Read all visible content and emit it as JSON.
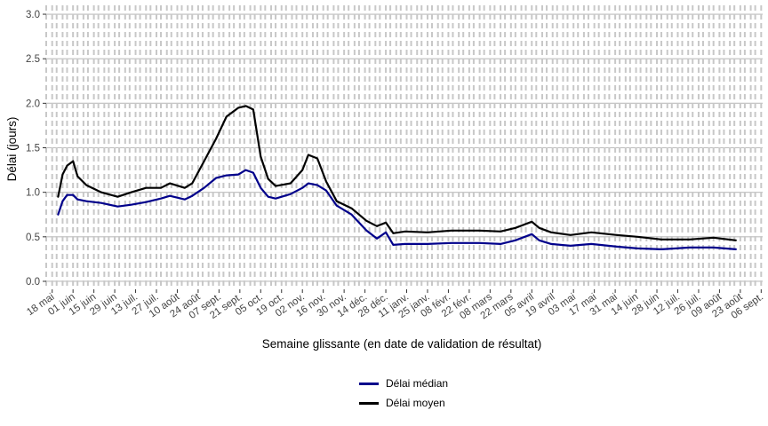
{
  "chart_data": {
    "type": "line",
    "xlabel": "Semaine glissante (en date de validation de résultat)",
    "ylabel": "Délai (jours)",
    "ylim": [
      -0.05,
      3.1
    ],
    "yticks": [
      0.0,
      0.5,
      1.0,
      1.5,
      2.0,
      2.5,
      3.0
    ],
    "ytick_labels": [
      "0.0",
      "0.5",
      "1.0",
      "1.5",
      "2.0",
      "2.5",
      "3.0"
    ],
    "xlim": [
      "2020-05-14",
      "2021-09-07"
    ],
    "x_tick_dates": [
      "2020-05-18",
      "2020-06-01",
      "2020-06-15",
      "2020-06-29",
      "2020-07-13",
      "2020-07-27",
      "2020-08-10",
      "2020-08-24",
      "2020-09-07",
      "2020-09-21",
      "2020-10-05",
      "2020-10-19",
      "2020-11-02",
      "2020-11-16",
      "2020-11-30",
      "2020-12-14",
      "2020-12-28",
      "2021-01-11",
      "2021-01-25",
      "2021-02-08",
      "2021-02-22",
      "2021-03-08",
      "2021-03-22",
      "2021-04-05",
      "2021-04-19",
      "2021-05-03",
      "2021-05-17",
      "2021-05-31",
      "2021-06-14",
      "2021-06-28",
      "2021-07-12",
      "2021-07-26",
      "2021-08-09",
      "2021-08-23",
      "2021-09-06"
    ],
    "x_tick_labels": [
      "18 mai",
      "01 juin",
      "15 juin",
      "29 juin",
      "13 juil.",
      "27 juil.",
      "10 août",
      "24 août",
      "07 sept.",
      "21 sept.",
      "05 oct.",
      "19 oct.",
      "02 nov.",
      "16 nov.",
      "30 nov.",
      "14 déc.",
      "28 déc.",
      "11 janv.",
      "25 janv.",
      "08 févr.",
      "22 févr.",
      "08 mars",
      "22 mars",
      "05 avril",
      "19 avril",
      "03 mai",
      "17 mai",
      "31 mai",
      "14 juin",
      "28 juin",
      "12 juil.",
      "26 juil.",
      "09 août",
      "23 août",
      "06 sept."
    ],
    "grid": true,
    "vertical_dashed_lines": "weekly",
    "legend_position": "bottom",
    "series": [
      {
        "name": "Délai médian",
        "color": "#00008B",
        "x": [
          "2020-05-22",
          "2020-05-25",
          "2020-05-28",
          "2020-06-01",
          "2020-06-04",
          "2020-06-10",
          "2020-06-20",
          "2020-07-01",
          "2020-07-10",
          "2020-07-20",
          "2020-07-30",
          "2020-08-05",
          "2020-08-15",
          "2020-08-20",
          "2020-08-28",
          "2020-09-05",
          "2020-09-12",
          "2020-09-20",
          "2020-09-25",
          "2020-09-30",
          "2020-10-05",
          "2020-10-10",
          "2020-10-15",
          "2020-10-25",
          "2020-11-02",
          "2020-11-06",
          "2020-11-12",
          "2020-11-18",
          "2020-11-25",
          "2020-12-05",
          "2020-12-15",
          "2020-12-22",
          "2020-12-28",
          "2021-01-02",
          "2021-01-10",
          "2021-01-25",
          "2021-02-10",
          "2021-03-01",
          "2021-03-15",
          "2021-03-25",
          "2021-04-05",
          "2021-04-10",
          "2021-04-18",
          "2021-05-01",
          "2021-05-15",
          "2021-06-01",
          "2021-06-15",
          "2021-07-01",
          "2021-07-20",
          "2021-08-05",
          "2021-08-20"
        ],
        "values": [
          0.75,
          0.9,
          0.97,
          0.97,
          0.92,
          0.9,
          0.88,
          0.84,
          0.86,
          0.89,
          0.93,
          0.96,
          0.92,
          0.96,
          1.05,
          1.16,
          1.19,
          1.2,
          1.25,
          1.22,
          1.05,
          0.95,
          0.93,
          0.98,
          1.05,
          1.1,
          1.08,
          1.02,
          0.85,
          0.75,
          0.57,
          0.48,
          0.55,
          0.41,
          0.42,
          0.42,
          0.43,
          0.43,
          0.42,
          0.46,
          0.53,
          0.46,
          0.42,
          0.4,
          0.42,
          0.39,
          0.37,
          0.36,
          0.38,
          0.38,
          0.36
        ]
      },
      {
        "name": "Délai moyen",
        "color": "#000000",
        "x": [
          "2020-05-22",
          "2020-05-25",
          "2020-05-28",
          "2020-06-01",
          "2020-06-04",
          "2020-06-10",
          "2020-06-20",
          "2020-07-01",
          "2020-07-10",
          "2020-07-20",
          "2020-07-30",
          "2020-08-05",
          "2020-08-15",
          "2020-08-20",
          "2020-08-28",
          "2020-09-05",
          "2020-09-12",
          "2020-09-20",
          "2020-09-25",
          "2020-09-30",
          "2020-10-05",
          "2020-10-10",
          "2020-10-15",
          "2020-10-25",
          "2020-11-02",
          "2020-11-06",
          "2020-11-12",
          "2020-11-18",
          "2020-11-25",
          "2020-12-05",
          "2020-12-15",
          "2020-12-22",
          "2020-12-28",
          "2021-01-02",
          "2021-01-10",
          "2021-01-25",
          "2021-02-10",
          "2021-03-01",
          "2021-03-15",
          "2021-03-25",
          "2021-04-05",
          "2021-04-10",
          "2021-04-18",
          "2021-05-01",
          "2021-05-15",
          "2021-06-01",
          "2021-06-15",
          "2021-07-01",
          "2021-07-20",
          "2021-08-05",
          "2021-08-20"
        ],
        "values": [
          0.95,
          1.2,
          1.3,
          1.35,
          1.18,
          1.08,
          1.0,
          0.95,
          1.0,
          1.05,
          1.05,
          1.1,
          1.05,
          1.1,
          1.35,
          1.6,
          1.85,
          1.95,
          1.97,
          1.93,
          1.4,
          1.15,
          1.07,
          1.1,
          1.25,
          1.42,
          1.38,
          1.12,
          0.9,
          0.82,
          0.68,
          0.62,
          0.66,
          0.54,
          0.56,
          0.55,
          0.57,
          0.57,
          0.56,
          0.6,
          0.67,
          0.6,
          0.55,
          0.52,
          0.55,
          0.52,
          0.5,
          0.47,
          0.47,
          0.49,
          0.46
        ]
      }
    ]
  }
}
